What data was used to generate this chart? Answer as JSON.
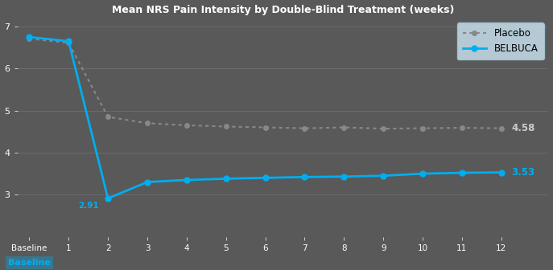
{
  "title": "Mean NRS Pain Intensity by Double-Blind Treatment (weeks)",
  "placebo_x": [
    0,
    1,
    2,
    3,
    4,
    5,
    6,
    7,
    8,
    9,
    10,
    11,
    12
  ],
  "placebo_y": [
    6.71,
    6.61,
    4.85,
    4.7,
    4.65,
    4.62,
    4.6,
    4.58,
    4.6,
    4.57,
    4.58,
    4.59,
    4.58
  ],
  "belbuca_x": [
    0,
    1,
    2,
    3,
    4,
    5,
    6,
    7,
    8,
    9,
    10,
    11,
    12
  ],
  "belbuca_y": [
    6.75,
    6.65,
    2.91,
    3.3,
    3.35,
    3.38,
    3.4,
    3.42,
    3.43,
    3.45,
    3.5,
    3.52,
    3.53
  ],
  "placebo_color": "#888888",
  "belbuca_color": "#00AEEF",
  "end_label_placebo": "4.58",
  "end_label_belbuca": "3.53",
  "belbuca_trough_label": "2.91",
  "ylim": [
    2.0,
    7.2
  ],
  "xlim": [
    -0.3,
    13.2
  ],
  "xtick_labels": [
    "Baseline",
    "1",
    "2",
    "3",
    "4",
    "5",
    "6",
    "7",
    "8",
    "9",
    "10",
    "11",
    "12"
  ],
  "ytick_values": [
    3,
    4,
    5,
    6,
    7
  ],
  "bg_color": "#595959",
  "plot_bg_color": "#595959",
  "legend_bg_color": "#cce6f4",
  "text_color": "#ffffff",
  "grid_color": "#6e6e6e"
}
